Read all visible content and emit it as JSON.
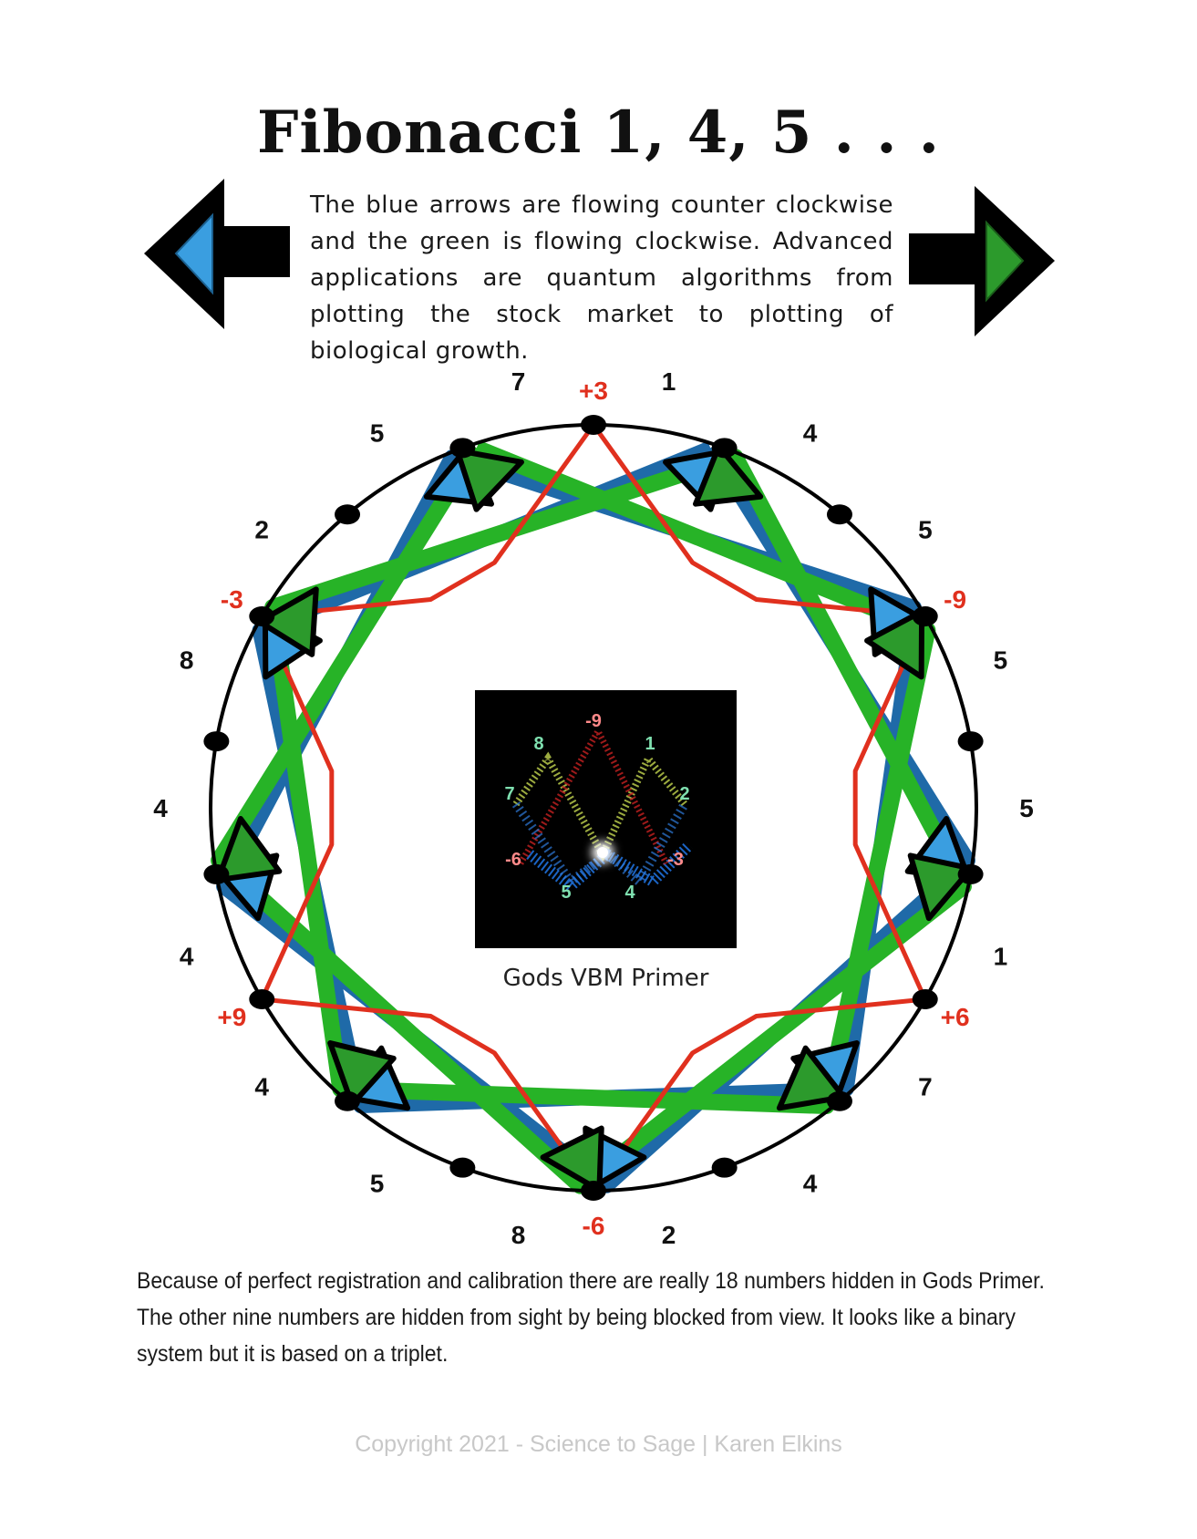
{
  "title": "Fibonacci 1, 4, 5 . . .",
  "intro": "The blue arrows are flowing counter clockwise and the green is flowing clockwise. Advanced applications are quantum algorithms from plotting the stock market to plotting of biological growth.",
  "colors": {
    "blue": "#1f6aa8",
    "green": "#27b327",
    "red": "#e0301e",
    "arrow_blue": "#3a9ee0",
    "arrow_green": "#2c9a2c"
  },
  "icons": {
    "left": "left-arrow-icon",
    "right": "right-arrow-icon"
  },
  "circle": {
    "red_labels": [
      {
        "text": "+3"
      },
      {
        "text": "-9"
      },
      {
        "text": "+6"
      },
      {
        "text": "-6"
      },
      {
        "text": "+9"
      },
      {
        "text": "-3"
      }
    ],
    "black_labels": [
      {
        "text": "1"
      },
      {
        "text": "4"
      },
      {
        "text": "5"
      },
      {
        "text": "5"
      },
      {
        "text": "5"
      },
      {
        "text": "1"
      },
      {
        "text": "7"
      },
      {
        "text": "4"
      },
      {
        "text": "2"
      },
      {
        "text": "8"
      },
      {
        "text": "5"
      },
      {
        "text": "4"
      },
      {
        "text": "4"
      },
      {
        "text": "4"
      },
      {
        "text": "8"
      },
      {
        "text": "2"
      },
      {
        "text": "5"
      },
      {
        "text": "7"
      }
    ]
  },
  "inset": {
    "caption": "Gods VBM Primer",
    "labels": [
      "-9",
      "8",
      "1",
      "7",
      "2",
      "-6",
      "-3",
      "5",
      "4"
    ]
  },
  "footer": "Because of perfect registration and calibration there are really 18 numbers hidden in Gods Primer. The other nine numbers are hidden from sight by being blocked from view.  It looks like a binary system but it is based on a triplet.",
  "copyright": "Copyright 2021 - Science to Sage | Karen Elkins"
}
